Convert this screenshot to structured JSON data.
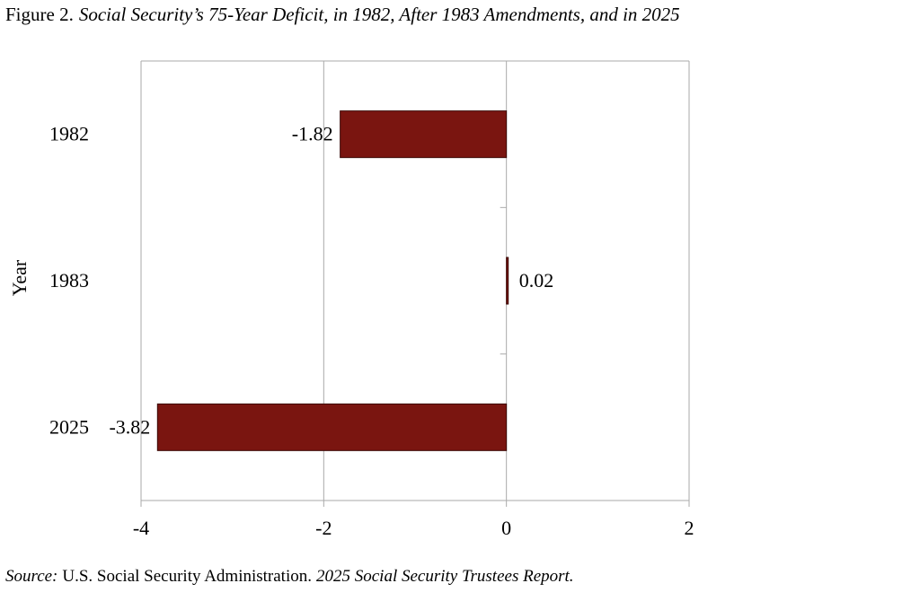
{
  "chart_data": {
    "type": "barh",
    "title_prefix": "Figure 2.",
    "title": "Social Security’s 75-Year Deficit, in 1982, After 1983 Amendments, and in 2025",
    "y_label": "Year",
    "categories": [
      "1982",
      "1983",
      "2025"
    ],
    "values": [
      -1.82,
      0.02,
      -3.82
    ],
    "color": "#7a1510",
    "xlim": [
      -4,
      2
    ],
    "xticks": [
      -4,
      -2,
      0,
      2
    ],
    "grid": true,
    "source": {
      "label": "Source:",
      "publisher": "U.S. Social Security Administration.",
      "report": "2025 Social Security Trustees Report."
    }
  }
}
